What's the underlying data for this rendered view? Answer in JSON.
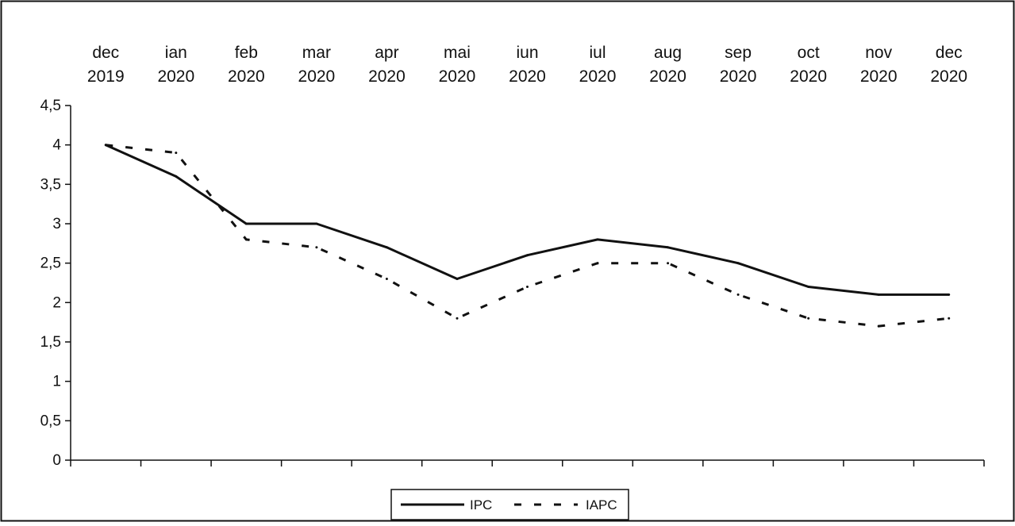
{
  "chart_data": {
    "type": "line",
    "categories": [
      [
        "dec",
        "2019"
      ],
      [
        "ian",
        "2020"
      ],
      [
        "feb",
        "2020"
      ],
      [
        "mar",
        "2020"
      ],
      [
        "apr",
        "2020"
      ],
      [
        "mai",
        "2020"
      ],
      [
        "iun",
        "2020"
      ],
      [
        "iul",
        "2020"
      ],
      [
        "aug",
        "2020"
      ],
      [
        "sep",
        "2020"
      ],
      [
        "oct",
        "2020"
      ],
      [
        "nov",
        "2020"
      ],
      [
        "dec",
        "2020"
      ]
    ],
    "series": [
      {
        "name": "IPC",
        "values": [
          4.0,
          3.6,
          3.0,
          3.0,
          2.7,
          2.3,
          2.6,
          2.8,
          2.7,
          2.5,
          2.2,
          2.1,
          2.1
        ],
        "style": "solid",
        "color": "#111111"
      },
      {
        "name": "IAPC",
        "values": [
          4.0,
          3.9,
          2.8,
          2.7,
          2.3,
          1.8,
          2.2,
          2.5,
          2.5,
          2.1,
          1.8,
          1.7,
          1.8
        ],
        "style": "dashed",
        "color": "#111111"
      }
    ],
    "yticks": [
      "0",
      "0,5",
      "1",
      "1,5",
      "2",
      "2,5",
      "3",
      "3,5",
      "4",
      "4,5"
    ],
    "ylim": [
      0,
      4.5
    ],
    "x_axis_labels_position": "top",
    "legend": "bottom-center",
    "grid": false,
    "title": "",
    "xlabel": "",
    "ylabel": ""
  }
}
